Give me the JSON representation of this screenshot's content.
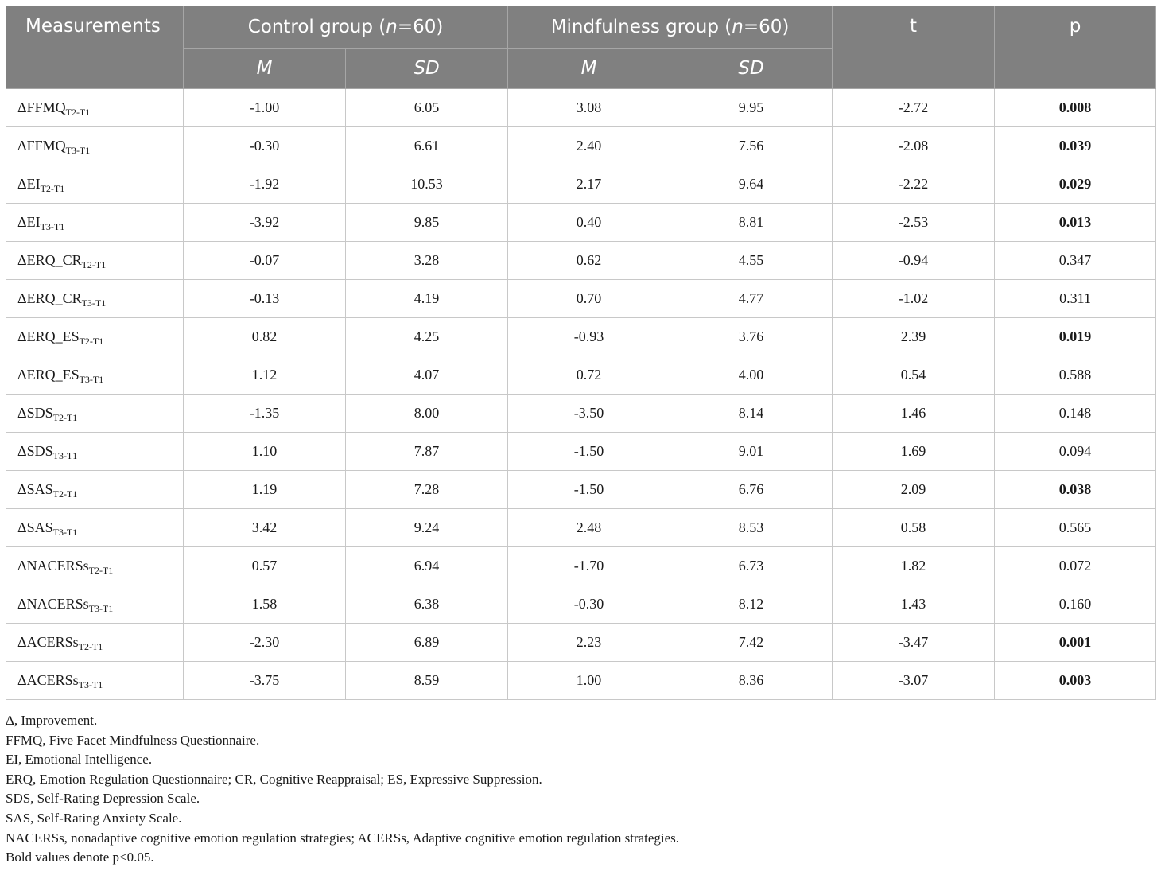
{
  "table": {
    "headers": {
      "measurements": "Measurements",
      "control": {
        "prefix": "Control group (",
        "n": "n",
        "suffix": "=60)"
      },
      "mindfulness": {
        "prefix": "Mindfulness group (",
        "n": "n",
        "suffix": "=60)"
      },
      "t": "t",
      "p": "p",
      "m": "M",
      "sd": "SD"
    },
    "rows": [
      {
        "delta": "Δ",
        "name": "FFMQ",
        "sub": "T2-T1",
        "cm": "-1.00",
        "csd": "6.05",
        "mm": "3.08",
        "msd": "9.95",
        "t": "-2.72",
        "p": "0.008",
        "sig": true
      },
      {
        "delta": "Δ",
        "name": "FFMQ",
        "sub": "T3-T1",
        "cm": "-0.30",
        "csd": "6.61",
        "mm": "2.40",
        "msd": "7.56",
        "t": "-2.08",
        "p": "0.039",
        "sig": true
      },
      {
        "delta": "Δ",
        "name": "EI",
        "sub": "T2-T1",
        "cm": "-1.92",
        "csd": "10.53",
        "mm": "2.17",
        "msd": "9.64",
        "t": "-2.22",
        "p": "0.029",
        "sig": true
      },
      {
        "delta": "Δ",
        "name": "EI",
        "sub": "T3-T1",
        "cm": "-3.92",
        "csd": "9.85",
        "mm": "0.40",
        "msd": "8.81",
        "t": "-2.53",
        "p": "0.013",
        "sig": true
      },
      {
        "delta": "Δ",
        "name": "ERQ_CR",
        "sub": "T2-T1",
        "cm": "-0.07",
        "csd": "3.28",
        "mm": "0.62",
        "msd": "4.55",
        "t": "-0.94",
        "p": "0.347",
        "sig": false
      },
      {
        "delta": "Δ",
        "name": "ERQ_CR",
        "sub": "T3-T1",
        "cm": "-0.13",
        "csd": "4.19",
        "mm": "0.70",
        "msd": "4.77",
        "t": "-1.02",
        "p": "0.311",
        "sig": false
      },
      {
        "delta": "Δ",
        "name": "ERQ_ES",
        "sub": "T2-T1",
        "cm": "0.82",
        "csd": "4.25",
        "mm": "-0.93",
        "msd": "3.76",
        "t": "2.39",
        "p": "0.019",
        "sig": true
      },
      {
        "delta": "Δ",
        "name": "ERQ_ES",
        "sub": "T3-T1",
        "cm": "1.12",
        "csd": "4.07",
        "mm": "0.72",
        "msd": "4.00",
        "t": "0.54",
        "p": "0.588",
        "sig": false
      },
      {
        "delta": "Δ",
        "name": "SDS",
        "sub": "T2-T1",
        "cm": "-1.35",
        "csd": "8.00",
        "mm": "-3.50",
        "msd": "8.14",
        "t": "1.46",
        "p": "0.148",
        "sig": false
      },
      {
        "delta": "Δ",
        "name": "SDS",
        "sub": "T3-T1",
        "cm": "1.10",
        "csd": "7.87",
        "mm": "-1.50",
        "msd": "9.01",
        "t": "1.69",
        "p": "0.094",
        "sig": false
      },
      {
        "delta": "Δ",
        "name": "SAS",
        "sub": "T2-T1",
        "cm": "1.19",
        "csd": "7.28",
        "mm": "-1.50",
        "msd": "6.76",
        "t": "2.09",
        "p": "0.038",
        "sig": true
      },
      {
        "delta": "Δ",
        "name": "SAS",
        "sub": "T3-T1",
        "cm": "3.42",
        "csd": "9.24",
        "mm": "2.48",
        "msd": "8.53",
        "t": "0.58",
        "p": "0.565",
        "sig": false
      },
      {
        "delta": "Δ",
        "name": "NACERSs",
        "sub": "T2-T1",
        "cm": "0.57",
        "csd": "6.94",
        "mm": "-1.70",
        "msd": "6.73",
        "t": "1.82",
        "p": "0.072",
        "sig": false
      },
      {
        "delta": "Δ",
        "name": "NACERSs",
        "sub": "T3-T1",
        "cm": "1.58",
        "csd": "6.38",
        "mm": "-0.30",
        "msd": "8.12",
        "t": "1.43",
        "p": "0.160",
        "sig": false
      },
      {
        "delta": "Δ",
        "name": "ACERSs",
        "sub": "T2-T1",
        "cm": "-2.30",
        "csd": "6.89",
        "mm": "2.23",
        "msd": "7.42",
        "t": "-3.47",
        "p": "0.001",
        "sig": true
      },
      {
        "delta": "Δ",
        "name": "ACERSs",
        "sub": "T3-T1",
        "cm": "-3.75",
        "csd": "8.59",
        "mm": "1.00",
        "msd": "8.36",
        "t": "-3.07",
        "p": "0.003",
        "sig": true
      }
    ]
  },
  "footnotes": [
    "Δ, Improvement.",
    "FFMQ, Five Facet Mindfulness Questionnaire.",
    "EI, Emotional Intelligence.",
    "ERQ, Emotion Regulation Questionnaire; CR, Cognitive Reappraisal; ES, Expressive Suppression.",
    "SDS, Self-Rating Depression Scale.",
    "SAS, Self-Rating Anxiety Scale.",
    "NACERSs, nonadaptive cognitive emotion regulation strategies; ACERSs, Adaptive cognitive emotion regulation strategies.",
    "Bold values denote p<0.05."
  ],
  "colors": {
    "header_bg": "#808080",
    "header_text": "#ffffff",
    "border": "#c8c8c8"
  }
}
